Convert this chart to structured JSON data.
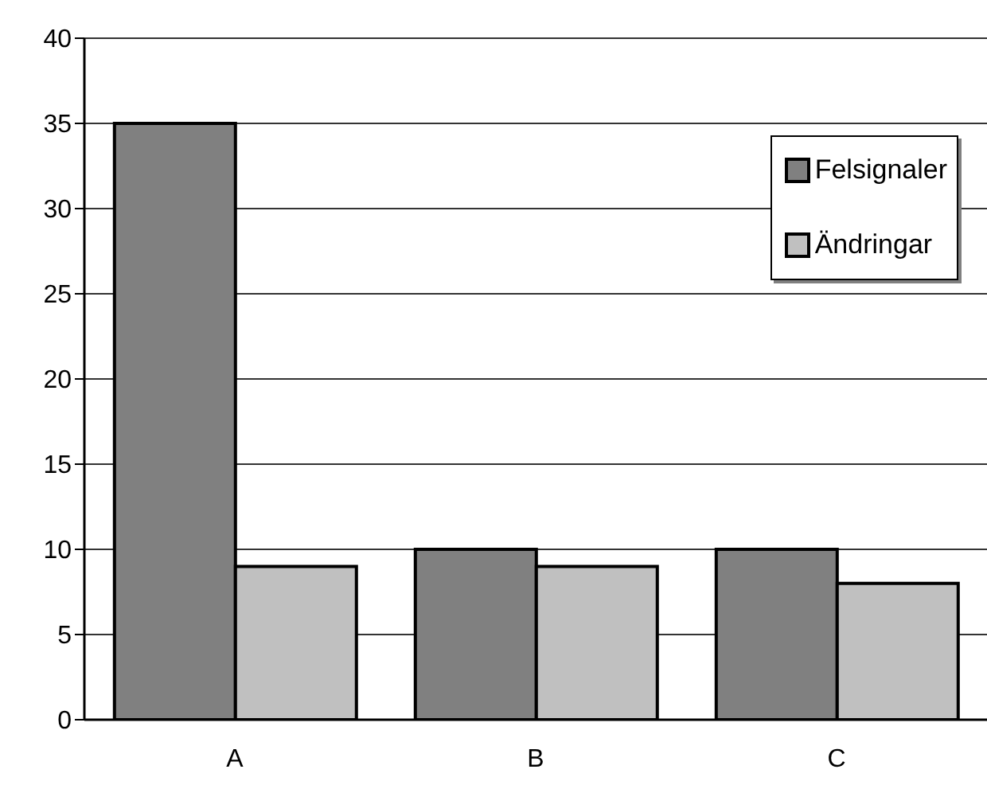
{
  "chart_data": {
    "type": "bar",
    "categories": [
      "A",
      "B",
      "C"
    ],
    "series": [
      {
        "name": "Felsignaler",
        "color": "#808080",
        "values": [
          35,
          10,
          10
        ]
      },
      {
        "name": "Ändringar",
        "color": "#c0c0c0",
        "values": [
          9,
          9,
          8
        ]
      }
    ],
    "ylim": [
      0,
      40
    ],
    "yticks": [
      0,
      5,
      10,
      15,
      20,
      25,
      30,
      35,
      40
    ],
    "grid": "y",
    "legend": "top right"
  }
}
